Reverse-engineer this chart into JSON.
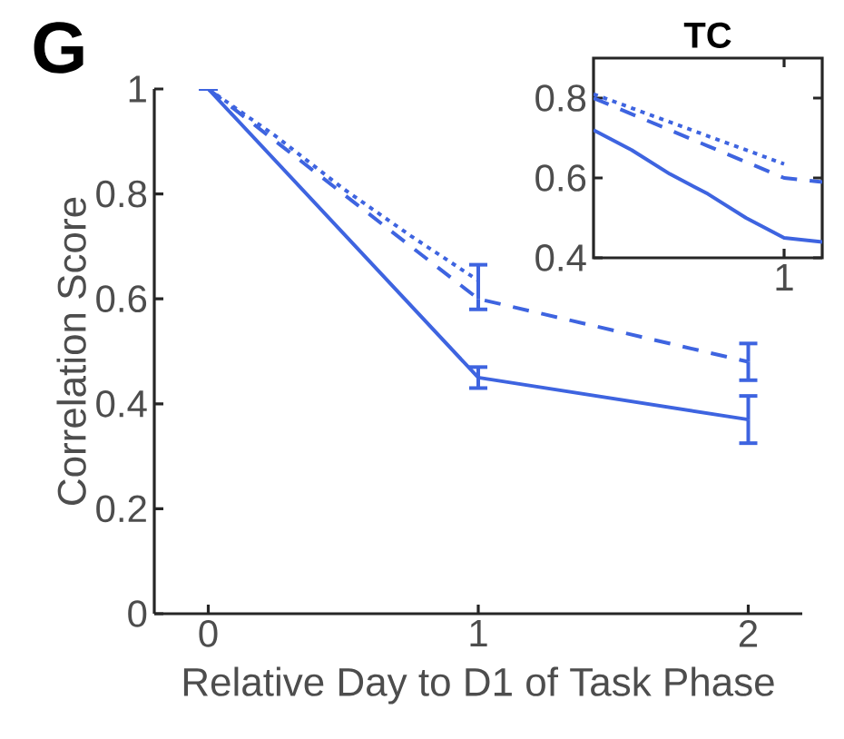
{
  "chart_data": [
    {
      "type": "line",
      "xlabel": "Relative Day to D1 of Task Phase",
      "ylabel": "Correlation Score",
      "annotations": [
        "G"
      ],
      "xlim": [
        -0.2,
        2.2
      ],
      "ylim": [
        0,
        1
      ],
      "xticks": [
        0,
        1,
        2
      ],
      "yticks": [
        0,
        0.2,
        0.4,
        0.6,
        0.8,
        1
      ],
      "marker": "none",
      "series": [
        {
          "color": "#3e64e0",
          "line_style": "solid",
          "x": [
            0,
            1,
            2
          ],
          "values": [
            1,
            0.45,
            0.37
          ],
          "errors": [
            null,
            0.02,
            0.045
          ]
        },
        {
          "color": "#3e64e0",
          "line_style": "dashed",
          "x": [
            0,
            1,
            2
          ],
          "values": [
            1,
            0.6,
            0.48
          ],
          "errors": [
            null,
            [
              0.58,
              0.665
            ],
            0.035
          ]
        },
        {
          "color": "#3e64e0",
          "line_style": "dotted",
          "x": [
            0,
            0.25,
            0.5,
            0.75,
            1
          ],
          "values": [
            1,
            0.91,
            0.81,
            0.72,
            0.635
          ]
        }
      ]
    },
    {
      "type": "line",
      "title": "TC",
      "categories": [
        null,
        null,
        null,
        null,
        null,
        "1",
        null
      ],
      "ylim": [
        0.4,
        0.9
      ],
      "yticks": [
        0.4,
        0.6,
        0.8
      ],
      "marker": "none",
      "series": [
        {
          "color": "#3e64e0",
          "line_style": "solid",
          "values": [
            0.72,
            0.67,
            0.61,
            0.56,
            0.5,
            0.45,
            0.44
          ]
        },
        {
          "color": "#3e64e0",
          "line_style": "dashed",
          "values": [
            0.8,
            0.76,
            0.72,
            0.68,
            0.64,
            0.6,
            0.59
          ]
        },
        {
          "color": "#3e64e0",
          "line_style": "dotted",
          "values": [
            0.81,
            0.775,
            0.74,
            0.705,
            0.67,
            0.635,
            null
          ]
        }
      ]
    }
  ]
}
